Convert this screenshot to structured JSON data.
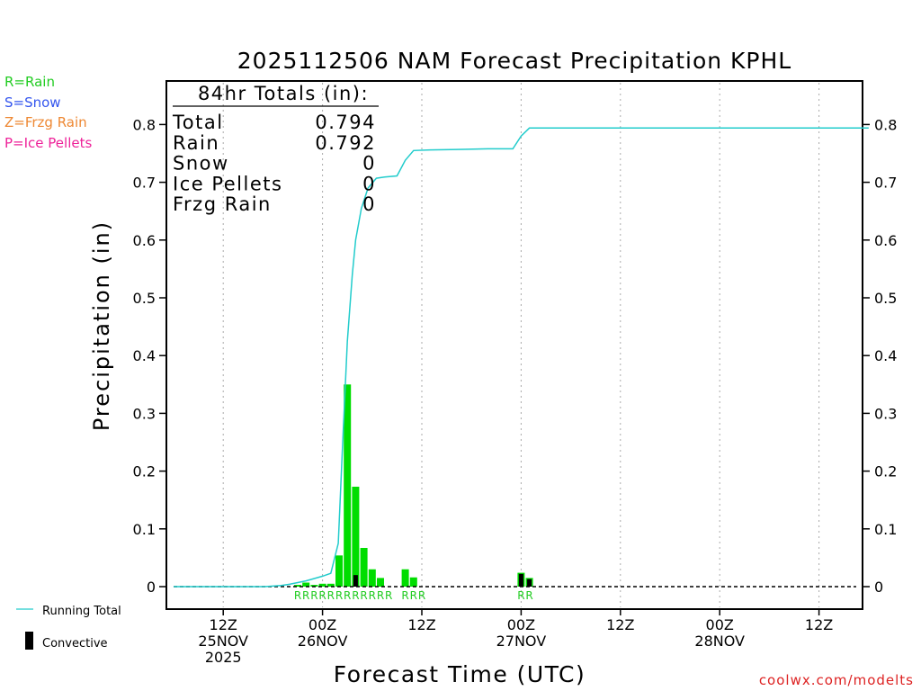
{
  "chart_data": {
    "type": "bar",
    "title": "2025112506 NAM Forecast Precipitation KPHL",
    "xlabel": "Forecast Time (UTC)",
    "ylabel": "Precipitation (in)",
    "ylim": [
      0,
      0.87
    ],
    "x_range_hours": [
      -1,
      84
    ],
    "y_ticks": [
      0,
      0.1,
      0.2,
      0.3,
      0.4,
      0.5,
      0.6,
      0.7,
      0.8
    ],
    "y_tick_labels": [
      "0",
      "0.1",
      "0.2",
      "0.3",
      "0.4",
      "0.5",
      "0.6",
      "0.7",
      "0.8"
    ],
    "x_ticks": [
      {
        "hour": 6,
        "lines": [
          "12Z",
          "25NOV",
          "2025"
        ]
      },
      {
        "hour": 18,
        "lines": [
          "00Z",
          "26NOV"
        ]
      },
      {
        "hour": 30,
        "lines": [
          "12Z"
        ]
      },
      {
        "hour": 42,
        "lines": [
          "00Z",
          "27NOV"
        ]
      },
      {
        "hour": 54,
        "lines": [
          "12Z"
        ]
      },
      {
        "hour": 66,
        "lines": [
          "00Z",
          "28NOV"
        ]
      },
      {
        "hour": 78,
        "lines": [
          "12Z"
        ]
      }
    ],
    "totals_box": {
      "heading": "84hr Totals (in):",
      "rows": [
        {
          "label": "Total",
          "value": "0.794"
        },
        {
          "label": "Rain",
          "value": "0.792"
        },
        {
          "label": "Snow",
          "value": "0"
        },
        {
          "label": "Ice Pellets",
          "value": "0"
        },
        {
          "label": "Frzg Rain",
          "value": "0"
        }
      ]
    },
    "series": [
      {
        "name": "Precipitation",
        "color": "#00dd00",
        "bars": [
          {
            "hour": 15,
            "value": 0.003
          },
          {
            "hour": 16,
            "value": 0.007
          },
          {
            "hour": 17,
            "value": 0.003
          },
          {
            "hour": 18,
            "value": 0.005
          },
          {
            "hour": 19,
            "value": 0.005
          },
          {
            "hour": 20,
            "value": 0.054
          },
          {
            "hour": 21,
            "value": 0.35
          },
          {
            "hour": 22,
            "value": 0.173
          },
          {
            "hour": 23,
            "value": 0.067
          },
          {
            "hour": 24,
            "value": 0.03
          },
          {
            "hour": 25,
            "value": 0.015
          },
          {
            "hour": 28,
            "value": 0.03
          },
          {
            "hour": 29,
            "value": 0.016
          },
          {
            "hour": 42,
            "value": 0.024
          },
          {
            "hour": 43,
            "value": 0.015
          }
        ]
      },
      {
        "name": "Convective",
        "color": "#000000",
        "bars": [
          {
            "hour": 22,
            "value": 0.02
          },
          {
            "hour": 42,
            "value": 0.022
          },
          {
            "hour": 43,
            "value": 0.013
          }
        ]
      },
      {
        "name": "Running Total",
        "color": "#22cccc",
        "type": "line",
        "points": [
          [
            0,
            0
          ],
          [
            11,
            0
          ],
          [
            12,
            0.001
          ],
          [
            13,
            0.002
          ],
          [
            14,
            0.004
          ],
          [
            15,
            0.007
          ],
          [
            16,
            0.01
          ],
          [
            17,
            0.014
          ],
          [
            18,
            0.018
          ],
          [
            19,
            0.023
          ],
          [
            19.9,
            0.075
          ],
          [
            20.5,
            0.27
          ],
          [
            21,
            0.425
          ],
          [
            21.6,
            0.54
          ],
          [
            22,
            0.6
          ],
          [
            22.7,
            0.655
          ],
          [
            23.5,
            0.69
          ],
          [
            24.5,
            0.707
          ],
          [
            25.5,
            0.709
          ],
          [
            27,
            0.711
          ],
          [
            28,
            0.738
          ],
          [
            29,
            0.755
          ],
          [
            31,
            0.756
          ],
          [
            35,
            0.757
          ],
          [
            38,
            0.758
          ],
          [
            41,
            0.758
          ],
          [
            42,
            0.78
          ],
          [
            43,
            0.794
          ],
          [
            84,
            0.794
          ]
        ]
      }
    ],
    "precip_type_row": [
      {
        "hour": 15,
        "label": "R"
      },
      {
        "hour": 16,
        "label": "R"
      },
      {
        "hour": 17,
        "label": "R"
      },
      {
        "hour": 18,
        "label": "R"
      },
      {
        "hour": 19,
        "label": "R"
      },
      {
        "hour": 20,
        "label": "R"
      },
      {
        "hour": 21,
        "label": "R"
      },
      {
        "hour": 22,
        "label": "R"
      },
      {
        "hour": 23,
        "label": "R"
      },
      {
        "hour": 24,
        "label": "R"
      },
      {
        "hour": 25,
        "label": "R"
      },
      {
        "hour": 26,
        "label": "R"
      },
      {
        "hour": 28,
        "label": "R"
      },
      {
        "hour": 29,
        "label": "R"
      },
      {
        "hour": 30,
        "label": "R"
      },
      {
        "hour": 42,
        "label": "R"
      },
      {
        "hour": 43,
        "label": "R"
      }
    ]
  },
  "legend_top": [
    {
      "text": "R=Rain",
      "color": "#22cc22"
    },
    {
      "text": "S=Snow",
      "color": "#3355ee"
    },
    {
      "text": "Z=Frzg Rain",
      "color": "#ee8833"
    },
    {
      "text": "P=Ice Pellets",
      "color": "#ee2299"
    }
  ],
  "legend_bottom": {
    "running_total": "Running Total",
    "convective": "Convective"
  },
  "credit": "coolwx.com/modelts",
  "colors": {
    "rain_bar": "#00dd00",
    "convective_bar": "#000000",
    "running_total": "#22cccc",
    "credit": "#dd2222"
  }
}
